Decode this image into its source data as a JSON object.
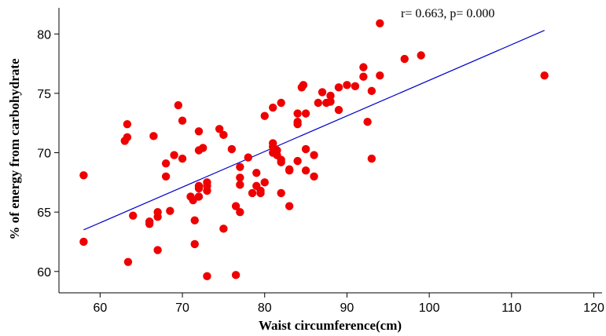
{
  "chart_data": {
    "type": "scatter",
    "title": "",
    "xlabel": "Waist circumference(cm)",
    "ylabel": "% of energy from carbohydrate",
    "annotation": "r= 0.663, p= 0.000",
    "xlim": [
      55,
      121
    ],
    "ylim": [
      58.2,
      82.2
    ],
    "xticks": [
      60,
      70,
      80,
      90,
      100,
      110,
      120
    ],
    "yticks": [
      60,
      65,
      70,
      75,
      80
    ],
    "grid": false,
    "legend": "none",
    "colors": {
      "points": "#ee0000",
      "fit_line": "#0000cc"
    },
    "fit_line": {
      "x": [
        58,
        114
      ],
      "y": [
        63.5,
        80.3
      ]
    },
    "points": [
      [
        58,
        68.1
      ],
      [
        58,
        62.5
      ],
      [
        63,
        71
      ],
      [
        63.3,
        71.3
      ],
      [
        63.3,
        72.4
      ],
      [
        63.4,
        60.8
      ],
      [
        64,
        64.7
      ],
      [
        66,
        64
      ],
      [
        66,
        64.2
      ],
      [
        66.5,
        71.4
      ],
      [
        67,
        65
      ],
      [
        67,
        64.6
      ],
      [
        67,
        61.8
      ],
      [
        68,
        68
      ],
      [
        68,
        69.1
      ],
      [
        68.5,
        65.1
      ],
      [
        69,
        69.8
      ],
      [
        69.5,
        74
      ],
      [
        70,
        72.7
      ],
      [
        70,
        69.5
      ],
      [
        71,
        66.3
      ],
      [
        71.3,
        66
      ],
      [
        71.5,
        64.3
      ],
      [
        71.5,
        62.3
      ],
      [
        72,
        67
      ],
      [
        72,
        67.2
      ],
      [
        72,
        66.3
      ],
      [
        72,
        70.2
      ],
      [
        72,
        71.8
      ],
      [
        72.5,
        70.4
      ],
      [
        73,
        67.5
      ],
      [
        73,
        67.2
      ],
      [
        73,
        66.8
      ],
      [
        73,
        59.6
      ],
      [
        74.5,
        72
      ],
      [
        75,
        71.5
      ],
      [
        75,
        63.6
      ],
      [
        76,
        70.3
      ],
      [
        76.5,
        65.5
      ],
      [
        76.5,
        59.7
      ],
      [
        77,
        65
      ],
      [
        77,
        67.3
      ],
      [
        77,
        67.9
      ],
      [
        77,
        68.8
      ],
      [
        78,
        69.6
      ],
      [
        78.5,
        66.6
      ],
      [
        79,
        67.2
      ],
      [
        79,
        68.3
      ],
      [
        79.5,
        66.8
      ],
      [
        79.5,
        66.6
      ],
      [
        80,
        67.5
      ],
      [
        80,
        73.1
      ],
      [
        81,
        70.8
      ],
      [
        81,
        70.5
      ],
      [
        81,
        70
      ],
      [
        81,
        73.8
      ],
      [
        81.5,
        69.8
      ],
      [
        81.5,
        70.2
      ],
      [
        82,
        69.2
      ],
      [
        82,
        69.4
      ],
      [
        82,
        66.6
      ],
      [
        82,
        74.2
      ],
      [
        83,
        68.6
      ],
      [
        83,
        68.5
      ],
      [
        83,
        65.5
      ],
      [
        84,
        72.4
      ],
      [
        84,
        72.6
      ],
      [
        84,
        73.3
      ],
      [
        84,
        69.3
      ],
      [
        84.5,
        75.5
      ],
      [
        84.7,
        75.7
      ],
      [
        85,
        73.3
      ],
      [
        85,
        70.3
      ],
      [
        85,
        68.5
      ],
      [
        86,
        69.8
      ],
      [
        86,
        68
      ],
      [
        86.5,
        74.2
      ],
      [
        87,
        75.1
      ],
      [
        87.5,
        74.2
      ],
      [
        88,
        74.3
      ],
      [
        88,
        74.8
      ],
      [
        89,
        75.5
      ],
      [
        89,
        73.6
      ],
      [
        90,
        75.7
      ],
      [
        91,
        75.6
      ],
      [
        92,
        76.4
      ],
      [
        92,
        77.2
      ],
      [
        92.5,
        72.6
      ],
      [
        93,
        75.2
      ],
      [
        93,
        69.5
      ],
      [
        94,
        76.5
      ],
      [
        94,
        80.9
      ],
      [
        97,
        77.9
      ],
      [
        99,
        78.2
      ],
      [
        114,
        76.5
      ]
    ]
  }
}
